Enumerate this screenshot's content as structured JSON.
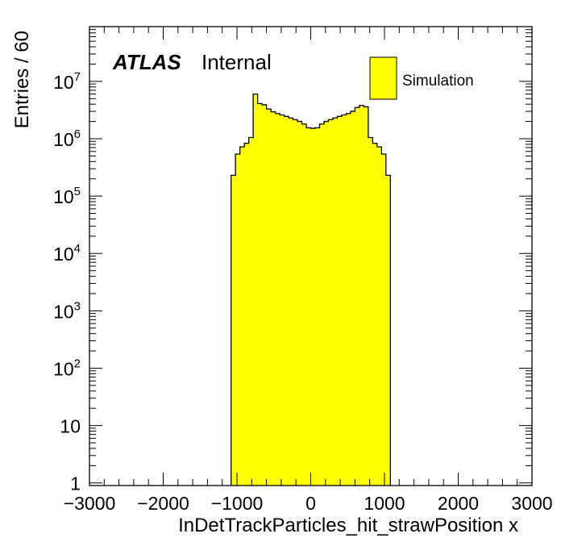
{
  "chart_data": {
    "type": "bar",
    "histogram": true,
    "xlabel": "InDetTrackParticles_hit_strawPosition x",
    "ylabel": "Entries / 60",
    "xlim": [
      -3000,
      3000
    ],
    "ylim": [
      0.9,
      90000000
    ],
    "log_y": true,
    "grid": false,
    "legend_position": "top-right",
    "bin_width": 60,
    "bin_low_edges": [
      -1080,
      -1020,
      -960,
      -900,
      -840,
      -780,
      -720,
      -660,
      -600,
      -540,
      -480,
      -420,
      -360,
      -300,
      -240,
      -180,
      -120,
      -60,
      0,
      60,
      120,
      180,
      240,
      300,
      360,
      420,
      480,
      540,
      600,
      660,
      720,
      780,
      840,
      900,
      960,
      1020
    ],
    "series": [
      {
        "name": "Simulation",
        "color": "#ffff00",
        "values": [
          230000,
          540000,
          720000,
          830000,
          1050000,
          6000000,
          4100000,
          3900000,
          3300000,
          2950000,
          2750000,
          2600000,
          2450000,
          2300000,
          2150000,
          2000000,
          1800000,
          1550000,
          1520000,
          1550000,
          1800000,
          2000000,
          2150000,
          2300000,
          2450000,
          2600000,
          2750000,
          3000000,
          3500000,
          3800000,
          3600000,
          1050000,
          830000,
          720000,
          540000,
          230000
        ]
      }
    ],
    "x_ticks": [
      -3000,
      -2000,
      -1000,
      0,
      1000,
      2000,
      3000
    ],
    "x_tick_labels": [
      "−3000",
      "−2000",
      "−1000",
      "0",
      "1000",
      "2000",
      "3000"
    ],
    "y_ticks": [
      1,
      10,
      100,
      1000,
      10000,
      100000,
      1000000,
      10000000
    ],
    "y_tick_labels": [
      {
        "base": "1",
        "exp": ""
      },
      {
        "base": "10",
        "exp": ""
      },
      {
        "base": "10",
        "exp": "2"
      },
      {
        "base": "10",
        "exp": "3"
      },
      {
        "base": "10",
        "exp": "4"
      },
      {
        "base": "10",
        "exp": "5"
      },
      {
        "base": "10",
        "exp": "6"
      },
      {
        "base": "10",
        "exp": "7"
      }
    ],
    "annotation": {
      "experiment": "ATLAS",
      "status": "Internal"
    }
  }
}
